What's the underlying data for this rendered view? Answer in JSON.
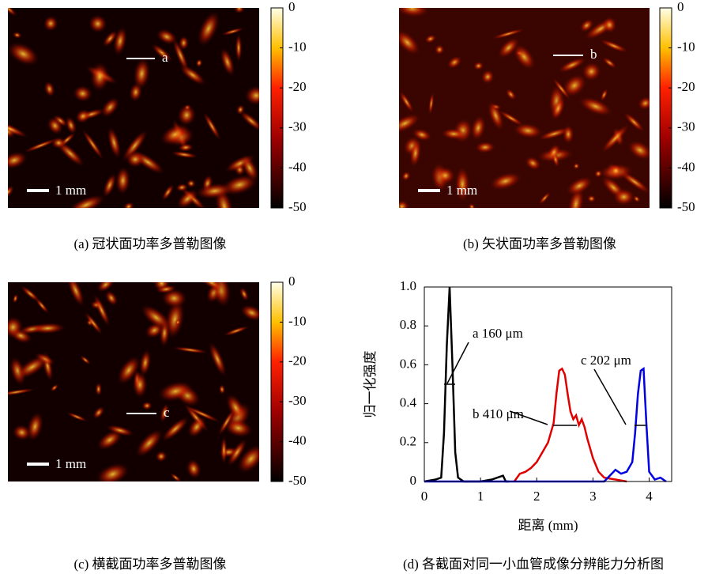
{
  "panels": [
    {
      "caption": "(a)  冠状面功率多普勒图像",
      "scale_bar": "1 mm",
      "marker": "a",
      "colorbar": {
        "lim": [
          -50,
          0
        ],
        "ticks": [
          0,
          -10,
          -20,
          -30,
          -40,
          -50
        ]
      }
    },
    {
      "caption": "(b)  矢状面功率多普勒图像",
      "scale_bar": "1 mm",
      "marker": "b",
      "colorbar": {
        "lim": [
          -50,
          0
        ],
        "ticks": [
          0,
          -10,
          -20,
          -30,
          -40,
          -50
        ]
      }
    },
    {
      "caption": "(c)  横截面功率多普勒图像",
      "scale_bar": "1 mm",
      "marker": "c",
      "colorbar": {
        "lim": [
          -50,
          0
        ],
        "ticks": [
          0,
          -10,
          -20,
          -30,
          -40,
          -50
        ]
      }
    }
  ],
  "chart_data": {
    "type": "line",
    "caption": "(d) 各截面对同一小血管成像分辨能力分析图",
    "xlabel": "距离 (mm)",
    "ylabel": "归一化强度",
    "xlim": [
      0,
      4.4
    ],
    "xticks": [
      0,
      1,
      2,
      3,
      4
    ],
    "ylim": [
      0,
      1
    ],
    "yticks": [
      0,
      0.2,
      0.4,
      0.6,
      0.8,
      {
        "value": 1,
        "label": "1.0"
      }
    ],
    "annotations": [
      "a 160 μm",
      "b 410 μm",
      "c 202 μm"
    ],
    "series": [
      {
        "color": "#000000",
        "x": [
          0,
          0.2,
          0.3,
          0.35,
          0.4,
          0.45,
          0.5,
          0.55,
          0.6,
          0.7,
          0.8,
          1.0,
          1.2,
          1.4,
          1.45,
          1.5
        ],
        "values": [
          0,
          0.01,
          0.02,
          0.25,
          0.7,
          1.0,
          0.6,
          0.15,
          0.02,
          0,
          0,
          0,
          0.01,
          0.03,
          0,
          0
        ]
      },
      {
        "color": "#e00000",
        "x": [
          1.6,
          1.7,
          1.8,
          1.9,
          2.0,
          2.1,
          2.2,
          2.3,
          2.35,
          2.4,
          2.45,
          2.5,
          2.55,
          2.6,
          2.65,
          2.7,
          2.75,
          2.8,
          2.85,
          2.9,
          3.0,
          3.1,
          3.2,
          3.4,
          3.6
        ],
        "values": [
          0,
          0.04,
          0.05,
          0.07,
          0.1,
          0.15,
          0.2,
          0.3,
          0.45,
          0.57,
          0.58,
          0.55,
          0.45,
          0.36,
          0.32,
          0.34,
          0.29,
          0.32,
          0.28,
          0.22,
          0.12,
          0.05,
          0.02,
          0.01,
          0
        ]
      },
      {
        "color": "#0000e0",
        "x": [
          0,
          3.2,
          3.3,
          3.4,
          3.5,
          3.6,
          3.7,
          3.75,
          3.8,
          3.85,
          3.9,
          3.95,
          4.0,
          4.1,
          4.2,
          4.3
        ],
        "values": [
          0,
          0,
          0.03,
          0.06,
          0.04,
          0.05,
          0.1,
          0.25,
          0.45,
          0.57,
          0.58,
          0.3,
          0.05,
          0.01,
          0.02,
          0
        ]
      }
    ]
  }
}
